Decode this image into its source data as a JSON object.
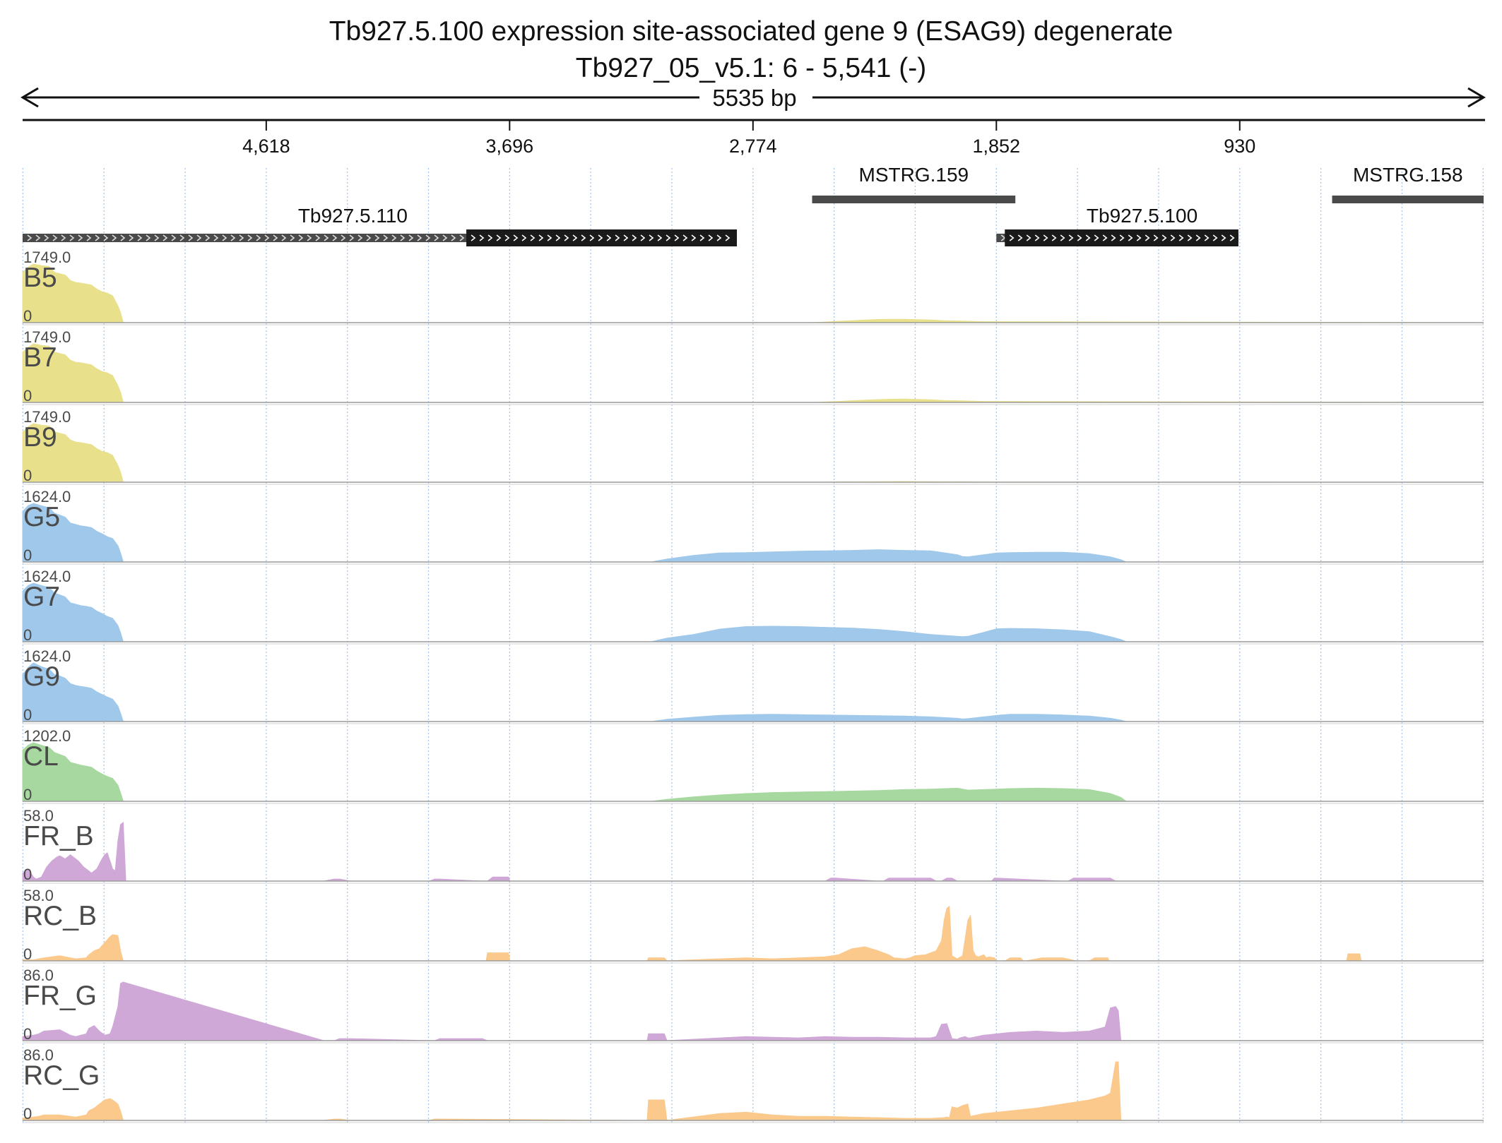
{
  "title": "Tb927.5.100  expression site-associated gene 9 (ESAG9)  degenerate",
  "subtitle": "Tb927_05_v5.1: 6 - 5,541 (-)",
  "span_label": "5535 bp",
  "colors": {
    "yellow": "#e8e08a",
    "blue": "#9fc8ea",
    "green": "#a6d8a0",
    "purple": "#cfa8d8",
    "orange": "#fbc98c",
    "gridline": "#a9c6e8",
    "feature_dark": "#1a1a1a",
    "feature_grey": "#4a4a4a"
  },
  "chart_data": {
    "type": "area",
    "strand": "-",
    "genome_range": [
      6,
      5541
    ],
    "x_ticks": [
      {
        "label": "4,618",
        "pos": 4618
      },
      {
        "label": "3,696",
        "pos": 3696
      },
      {
        "label": "2,774",
        "pos": 2774
      },
      {
        "label": "1,852",
        "pos": 1852
      },
      {
        "label": "930",
        "pos": 930
      }
    ],
    "features": [
      {
        "name": "MSTRG.159",
        "kind": "transcript",
        "start": 1780,
        "end": 2550
      },
      {
        "name": "MSTRG.158",
        "kind": "transcript",
        "start": 6,
        "end": 580
      },
      {
        "name": "Tb927.5.110",
        "kind": "gene",
        "start": 2835,
        "end": 5541,
        "cds_start": 2835,
        "cds_end": 3860,
        "label_pos": 4290
      },
      {
        "name": "Tb927.5.100",
        "kind": "gene",
        "start": 935,
        "end": 1852,
        "cds_start": 935,
        "cds_end": 1820,
        "label_pos": 1300
      }
    ],
    "tracks": [
      {
        "name": "B5",
        "max": "1749.0",
        "min": "0",
        "color": "yellow",
        "x": [
          5541,
          5520,
          5500,
          5470,
          5440,
          5420,
          5400,
          5380,
          5360,
          5340,
          5320,
          5300,
          5280,
          5260,
          5240,
          5220,
          5200,
          5180,
          5170,
          5160,
          2550,
          2500,
          2450,
          2400,
          2350,
          2300,
          2250,
          2200,
          2150,
          2100,
          2050,
          2000,
          1950,
          1900,
          6
        ],
        "y": [
          1500,
          1650,
          1749,
          1700,
          1680,
          1500,
          1460,
          1420,
          1260,
          1200,
          1180,
          1150,
          1120,
          1000,
          920,
          880,
          800,
          500,
          300,
          0,
          0,
          20,
          40,
          60,
          80,
          95,
          100,
          100,
          90,
          80,
          60,
          50,
          40,
          30,
          0
        ]
      },
      {
        "name": "B7",
        "max": "1749.0",
        "min": "0",
        "color": "yellow",
        "x": [
          5541,
          5520,
          5500,
          5470,
          5440,
          5420,
          5400,
          5380,
          5360,
          5340,
          5320,
          5300,
          5280,
          5260,
          5240,
          5220,
          5200,
          5180,
          5170,
          5160,
          2550,
          2500,
          2450,
          2400,
          2350,
          2300,
          2250,
          2200,
          2150,
          2100,
          2050,
          2000,
          1950,
          1900,
          6
        ],
        "y": [
          1500,
          1640,
          1749,
          1700,
          1680,
          1500,
          1460,
          1420,
          1260,
          1200,
          1180,
          1150,
          1120,
          1000,
          920,
          880,
          800,
          500,
          300,
          0,
          0,
          15,
          30,
          50,
          70,
          85,
          95,
          100,
          90,
          80,
          60,
          50,
          40,
          30,
          0
        ]
      },
      {
        "name": "B9",
        "max": "1749.0",
        "min": "0",
        "color": "yellow",
        "x": [
          5541,
          5520,
          5500,
          5470,
          5440,
          5420,
          5400,
          5380,
          5360,
          5340,
          5320,
          5300,
          5280,
          5260,
          5240,
          5220,
          5200,
          5180,
          5170,
          5160,
          2550,
          2400,
          2200,
          2000,
          1900,
          6
        ],
        "y": [
          1500,
          1650,
          1749,
          1700,
          1680,
          1500,
          1460,
          1420,
          1260,
          1200,
          1180,
          1150,
          1120,
          1000,
          920,
          880,
          800,
          500,
          300,
          0,
          0,
          10,
          20,
          10,
          5,
          0
        ]
      },
      {
        "name": "G5",
        "max": "1624.0",
        "min": "0",
        "color": "blue",
        "x": [
          5541,
          5520,
          5500,
          5470,
          5440,
          5420,
          5400,
          5380,
          5360,
          5340,
          5320,
          5300,
          5280,
          5260,
          5240,
          5220,
          5200,
          5180,
          5170,
          5160,
          3160,
          3100,
          3000,
          2900,
          2800,
          2700,
          2600,
          2500,
          2400,
          2300,
          2200,
          2100,
          2000,
          1980,
          1960,
          1900,
          1850,
          1800,
          1700,
          1600,
          1500,
          1420,
          1380,
          1360,
          6
        ],
        "y": [
          1400,
          1560,
          1624,
          1560,
          1500,
          1350,
          1300,
          1240,
          1080,
          1040,
          1000,
          980,
          950,
          850,
          780,
          700,
          650,
          450,
          250,
          0,
          0,
          80,
          180,
          250,
          260,
          280,
          300,
          310,
          320,
          340,
          320,
          310,
          200,
          150,
          140,
          200,
          250,
          260,
          270,
          270,
          230,
          140,
          60,
          0,
          0
        ]
      },
      {
        "name": "G7",
        "max": "1624.0",
        "min": "0",
        "color": "blue",
        "x": [
          5541,
          5520,
          5500,
          5470,
          5440,
          5420,
          5400,
          5380,
          5360,
          5340,
          5320,
          5300,
          5280,
          5260,
          5240,
          5220,
          5200,
          5180,
          5170,
          5160,
          3160,
          3100,
          3000,
          2900,
          2800,
          2700,
          2600,
          2500,
          2400,
          2300,
          2200,
          2100,
          2000,
          1980,
          1960,
          1900,
          1850,
          1800,
          1700,
          1600,
          1500,
          1420,
          1380,
          1360,
          6
        ],
        "y": [
          1400,
          1560,
          1624,
          1560,
          1500,
          1350,
          1300,
          1240,
          1080,
          1040,
          1000,
          980,
          950,
          850,
          780,
          700,
          650,
          450,
          250,
          0,
          0,
          100,
          200,
          350,
          420,
          430,
          420,
          400,
          380,
          340,
          280,
          200,
          150,
          140,
          150,
          260,
          360,
          370,
          360,
          330,
          280,
          140,
          60,
          0,
          0
        ]
      },
      {
        "name": "G9",
        "max": "1624.0",
        "min": "0",
        "color": "blue",
        "x": [
          5541,
          5520,
          5500,
          5470,
          5440,
          5420,
          5400,
          5380,
          5360,
          5340,
          5320,
          5300,
          5280,
          5260,
          5240,
          5220,
          5200,
          5180,
          5170,
          5160,
          3160,
          3100,
          3000,
          2900,
          2800,
          2700,
          2600,
          2500,
          2400,
          2300,
          2200,
          2100,
          2000,
          1980,
          1960,
          1900,
          1850,
          1800,
          1700,
          1600,
          1500,
          1420,
          1380,
          1360,
          6
        ],
        "y": [
          1300,
          1500,
          1624,
          1520,
          1450,
          1300,
          1260,
          1200,
          1050,
          1000,
          970,
          950,
          920,
          820,
          750,
          680,
          620,
          430,
          230,
          0,
          0,
          60,
          120,
          170,
          190,
          200,
          190,
          180,
          170,
          160,
          150,
          130,
          90,
          70,
          80,
          130,
          170,
          200,
          200,
          180,
          150,
          90,
          40,
          0,
          0
        ]
      },
      {
        "name": "CL",
        "max": "1202.0",
        "min": "0",
        "color": "green",
        "x": [
          5541,
          5520,
          5500,
          5470,
          5440,
          5420,
          5400,
          5380,
          5360,
          5340,
          5320,
          5300,
          5280,
          5260,
          5240,
          5220,
          5200,
          5180,
          5170,
          5160,
          3160,
          3100,
          3000,
          2900,
          2800,
          2700,
          2600,
          2500,
          2400,
          2300,
          2200,
          2100,
          2000,
          1980,
          1960,
          1900,
          1850,
          1800,
          1700,
          1600,
          1500,
          1420,
          1380,
          1360,
          6
        ],
        "y": [
          1050,
          1150,
          1202,
          1150,
          1100,
          1000,
          960,
          920,
          800,
          770,
          740,
          720,
          700,
          620,
          560,
          510,
          470,
          330,
          180,
          0,
          0,
          40,
          90,
          130,
          160,
          180,
          190,
          200,
          210,
          220,
          240,
          250,
          270,
          250,
          230,
          240,
          250,
          260,
          270,
          260,
          240,
          160,
          80,
          0,
          0
        ]
      },
      {
        "name": "FR_B",
        "max": "58.0",
        "min": "0",
        "color": "purple",
        "x": [
          5541,
          5520,
          5500,
          5490,
          5470,
          5450,
          5430,
          5410,
          5400,
          5380,
          5360,
          5350,
          5330,
          5310,
          5300,
          5290,
          5280,
          5270,
          5260,
          5240,
          5230,
          5220,
          5210,
          5200,
          5190,
          5180,
          5170,
          5160,
          5150,
          4400,
          4360,
          4340,
          4300,
          4000,
          3980,
          3960,
          3800,
          3780,
          3760,
          3755,
          3705,
          3700,
          3695,
          2500,
          2480,
          2460,
          2300,
          2280,
          2260,
          2100,
          2080,
          2060,
          2040,
          2020,
          2000,
          1870,
          1860,
          1850,
          1600,
          1580,
          1560,
          1420,
          1400,
          1380,
          6
        ],
        "y": [
          8,
          12,
          4,
          2,
          4,
          14,
          20,
          24,
          25,
          22,
          26,
          24,
          20,
          14,
          12,
          10,
          8,
          10,
          12,
          22,
          26,
          28,
          20,
          12,
          10,
          40,
          56,
          58,
          0,
          0,
          2,
          2,
          0,
          0,
          2,
          2,
          0,
          0,
          4,
          4,
          4,
          4,
          0,
          0,
          3,
          3,
          0,
          0,
          3,
          3,
          0,
          0,
          3,
          3,
          0,
          0,
          3,
          3,
          0,
          0,
          3,
          3,
          0,
          0,
          0
        ]
      },
      {
        "name": "RC_B",
        "max": "58.0",
        "min": "0",
        "color": "orange",
        "x": [
          5541,
          5500,
          5480,
          5460,
          5400,
          5380,
          5360,
          5340,
          5300,
          5290,
          5270,
          5250,
          5230,
          5210,
          5200,
          5180,
          5170,
          5160,
          3785,
          3780,
          3760,
          3710,
          3700,
          3695,
          3175,
          3170,
          3150,
          3110,
          3100,
          2900,
          2800,
          2700,
          2600,
          2500,
          2450,
          2400,
          2350,
          2300,
          2280,
          2260,
          2240,
          2200,
          2180,
          2160,
          2120,
          2100,
          2080,
          2060,
          2050,
          2040,
          2030,
          2020,
          2000,
          1980,
          1960,
          1950,
          1940,
          1930,
          1920,
          1900,
          1890,
          1880,
          1860,
          1850,
          1820,
          1800,
          1780,
          1760,
          1750,
          1740,
          1680,
          1600,
          1550,
          1500,
          1480,
          1430,
          1425,
          1395,
          1390,
          525,
          520,
          475,
          470,
          6
        ],
        "y": [
          1,
          1,
          2,
          3,
          5,
          4,
          3,
          2,
          3,
          6,
          10,
          12,
          18,
          24,
          26,
          25,
          10,
          0,
          0,
          8,
          8,
          8,
          8,
          0,
          0,
          3,
          3,
          3,
          0,
          2,
          3,
          2,
          3,
          4,
          6,
          12,
          14,
          10,
          8,
          6,
          3,
          2,
          3,
          5,
          6,
          8,
          10,
          20,
          40,
          52,
          54,
          5,
          2,
          5,
          40,
          45,
          10,
          5,
          4,
          6,
          3,
          4,
          3,
          0,
          0,
          3,
          3,
          3,
          0,
          0,
          3,
          3,
          0,
          0,
          3,
          3,
          0,
          0,
          0,
          0,
          7,
          7,
          0,
          0
        ]
      },
      {
        "name": "FR_G",
        "max": "86.0",
        "min": "0",
        "color": "purple",
        "x": [
          5541,
          5500,
          5480,
          5460,
          5400,
          5380,
          5360,
          5340,
          5300,
          5290,
          5270,
          5250,
          5230,
          5210,
          5200,
          5180,
          5170,
          5160,
          4400,
          4360,
          4340,
          4300,
          4000,
          3980,
          3960,
          3800,
          3780,
          3760,
          3700,
          3175,
          3170,
          3140,
          3110,
          3100,
          2900,
          2800,
          2700,
          2600,
          2500,
          2400,
          2300,
          2200,
          2100,
          2080,
          2060,
          2040,
          2020,
          2000,
          1990,
          1970,
          1960,
          1950,
          1900,
          1800,
          1700,
          1600,
          1500,
          1440,
          1420,
          1400,
          1390,
          1380,
          6
        ],
        "y": [
          6,
          8,
          10,
          14,
          16,
          12,
          8,
          6,
          10,
          18,
          22,
          14,
          8,
          10,
          20,
          50,
          84,
          86,
          0,
          0,
          3,
          3,
          0,
          0,
          3,
          3,
          0,
          0,
          0,
          0,
          10,
          10,
          10,
          0,
          4,
          6,
          5,
          4,
          6,
          5,
          5,
          4,
          4,
          6,
          24,
          25,
          3,
          2,
          4,
          6,
          4,
          4,
          8,
          12,
          14,
          12,
          14,
          20,
          48,
          50,
          44,
          0,
          0
        ]
      },
      {
        "name": "RC_G",
        "max": "86.0",
        "min": "0",
        "color": "orange",
        "x": [
          5541,
          5500,
          5480,
          5460,
          5400,
          5380,
          5360,
          5340,
          5300,
          5290,
          5270,
          5250,
          5230,
          5210,
          5200,
          5180,
          5170,
          5160,
          4400,
          4360,
          4340,
          4300,
          4000,
          3980,
          3960,
          3175,
          3170,
          3140,
          3110,
          3100,
          2900,
          2800,
          2700,
          2600,
          2500,
          2400,
          2300,
          2200,
          2100,
          2050,
          2040,
          2030,
          2020,
          2000,
          1980,
          1960,
          1950,
          1900,
          1800,
          1700,
          1600,
          1500,
          1440,
          1430,
          1420,
          1400,
          1390,
          1380,
          6
        ],
        "y": [
          3,
          5,
          6,
          8,
          8,
          7,
          6,
          5,
          8,
          14,
          18,
          24,
          30,
          32,
          30,
          24,
          14,
          0,
          0,
          2,
          2,
          0,
          0,
          2,
          2,
          0,
          30,
          30,
          30,
          0,
          10,
          12,
          8,
          6,
          6,
          5,
          4,
          3,
          3,
          4,
          5,
          4,
          20,
          18,
          22,
          24,
          6,
          10,
          14,
          18,
          24,
          30,
          36,
          38,
          40,
          86,
          86,
          0,
          0
        ]
      }
    ]
  }
}
